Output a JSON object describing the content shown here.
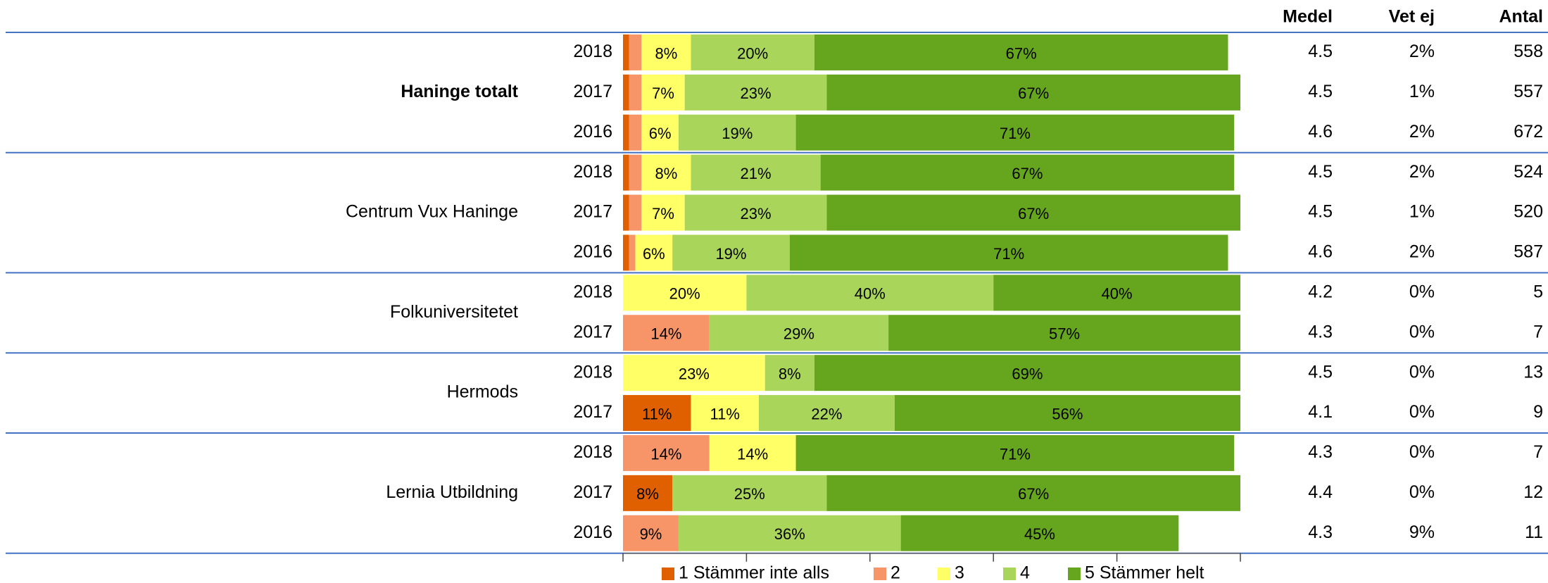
{
  "chart_data": {
    "type": "stacked-bar",
    "orientation": "horizontal",
    "groups": [
      {
        "name": "Haninge totalt",
        "categories": [
          "2018",
          "2017",
          "2016"
        ]
      },
      {
        "name": "Centrum Vux Haninge",
        "categories": [
          "2018",
          "2017",
          "2016"
        ]
      },
      {
        "name": "Folkuniversitetet",
        "categories": [
          "2018",
          "2017"
        ]
      },
      {
        "name": "Hermods",
        "categories": [
          "2018",
          "2017"
        ]
      },
      {
        "name": "Lernia Utbildning",
        "categories": [
          "2018",
          "2017",
          "2016"
        ]
      }
    ],
    "series": [
      {
        "name": "1 Stämmer inte alls",
        "color": "#e06000",
        "values": [
          1,
          1,
          1,
          1,
          1,
          1,
          0,
          0,
          0,
          11,
          0,
          8,
          0
        ],
        "value_labels": [
          null,
          null,
          null,
          null,
          null,
          null,
          null,
          null,
          null,
          "11%",
          null,
          "8%",
          null
        ]
      },
      {
        "name": "2",
        "color": "#f79468",
        "values": [
          2,
          2,
          2,
          2,
          2,
          1,
          0,
          14,
          0,
          0,
          14,
          0,
          9
        ],
        "value_labels": [
          null,
          null,
          null,
          null,
          null,
          null,
          null,
          "14%",
          null,
          null,
          "14%",
          null,
          "9%"
        ]
      },
      {
        "name": "3",
        "color": "#ffff66",
        "values": [
          8,
          7,
          6,
          8,
          7,
          6,
          20,
          0,
          23,
          11,
          14,
          0,
          0
        ],
        "value_labels": [
          "8%",
          "7%",
          "6%",
          "8%",
          "7%",
          "6%",
          "20%",
          null,
          "23%",
          "11%",
          "14%",
          null,
          null
        ]
      },
      {
        "name": "4",
        "color": "#a9d65a",
        "values": [
          20,
          23,
          19,
          21,
          23,
          19,
          40,
          29,
          8,
          22,
          0,
          25,
          36
        ],
        "value_labels": [
          "20%",
          "23%",
          "19%",
          "21%",
          "23%",
          "19%",
          "40%",
          "29%",
          "8%",
          "22%",
          null,
          "25%",
          "36%"
        ]
      },
      {
        "name": "5 Stämmer helt",
        "color": "#66a61e",
        "values": [
          67,
          67,
          71,
          67,
          67,
          71,
          40,
          57,
          69,
          56,
          71,
          67,
          45
        ],
        "value_labels": [
          "67%",
          "67%",
          "71%",
          "67%",
          "67%",
          "71%",
          "40%",
          "57%",
          "69%",
          "56%",
          "71%",
          "67%",
          "45%"
        ]
      }
    ],
    "xlim": [
      0,
      100
    ],
    "xticks": [
      0,
      20,
      40,
      60,
      80,
      100
    ],
    "columns": [
      {
        "name": "Medel",
        "values": [
          4.5,
          4.5,
          4.6,
          4.5,
          4.5,
          4.6,
          4.2,
          4.3,
          4.5,
          4.1,
          4.3,
          4.4,
          4.3
        ]
      },
      {
        "name": "Vet ej",
        "values": [
          2,
          1,
          2,
          2,
          1,
          2,
          0,
          0,
          0,
          0,
          0,
          0,
          9
        ],
        "value_labels": [
          "2%",
          "1%",
          "2%",
          "2%",
          "1%",
          "2%",
          "0%",
          "0%",
          "0%",
          "0%",
          "0%",
          "0%",
          "9%"
        ]
      },
      {
        "name": "Antal",
        "values": [
          558,
          557,
          672,
          524,
          520,
          587,
          5,
          7,
          13,
          9,
          7,
          12,
          11
        ]
      }
    ]
  }
}
